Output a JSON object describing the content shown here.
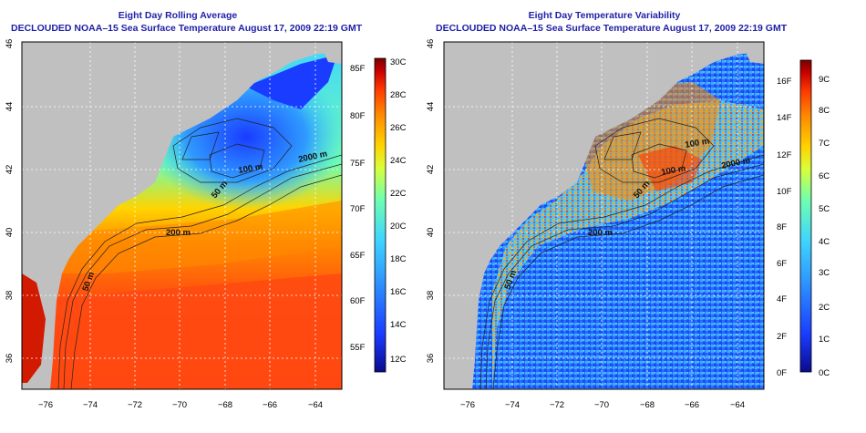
{
  "left_panel": {
    "title": "Eight Day Rolling Average",
    "subtitle": "DECLOUDED NOAA–15 Sea Surface Temperature August 17, 2009 22:19 GMT",
    "y_ticks": [
      "46",
      "44",
      "42",
      "40",
      "38",
      "36"
    ],
    "x_ticks": [
      "−76",
      "−74",
      "−72",
      "−70",
      "−68",
      "−66",
      "−64"
    ],
    "contour_labels": [
      "200 m",
      "2000 m",
      "100 m",
      "50 m",
      "50 m"
    ],
    "colorbar_c": [
      "30C",
      "28C",
      "26C",
      "24C",
      "22C",
      "20C",
      "18C",
      "16C",
      "14C",
      "12C"
    ],
    "colorbar_f": [
      "85F",
      "80F",
      "75F",
      "70F",
      "65F",
      "60F",
      "55F"
    ]
  },
  "right_panel": {
    "title": "Eight Day Temperature Variability",
    "subtitle": "DECLOUDED NOAA–15 Sea Surface Temperature August 17, 2009 22:19 GMT",
    "y_ticks": [
      "46",
      "44",
      "42",
      "40",
      "38",
      "36"
    ],
    "x_ticks": [
      "−76",
      "−74",
      "−72",
      "−70",
      "−68",
      "−66",
      "−64"
    ],
    "contour_labels": [
      "200 m",
      "2000 m",
      "100 m",
      "100 m",
      "50 m",
      "50 m"
    ],
    "colorbar_c": [
      "9C",
      "8C",
      "7C",
      "6C",
      "5C",
      "4C",
      "3C",
      "2C",
      "1C",
      "0C"
    ],
    "colorbar_f": [
      "16F",
      "14F",
      "12F",
      "10F",
      "8F",
      "6F",
      "4F",
      "2F",
      "0F"
    ]
  },
  "colors": {
    "land": "#c0c0c0",
    "title": "#1f1fa8",
    "jet_scale": [
      "#0a0a8c",
      "#1a3cff",
      "#2f9bff",
      "#3fd4ff",
      "#6fffb0",
      "#d8ff3a",
      "#ffd400",
      "#ff8a00",
      "#ff3a00",
      "#c80000",
      "#7a0000"
    ]
  }
}
